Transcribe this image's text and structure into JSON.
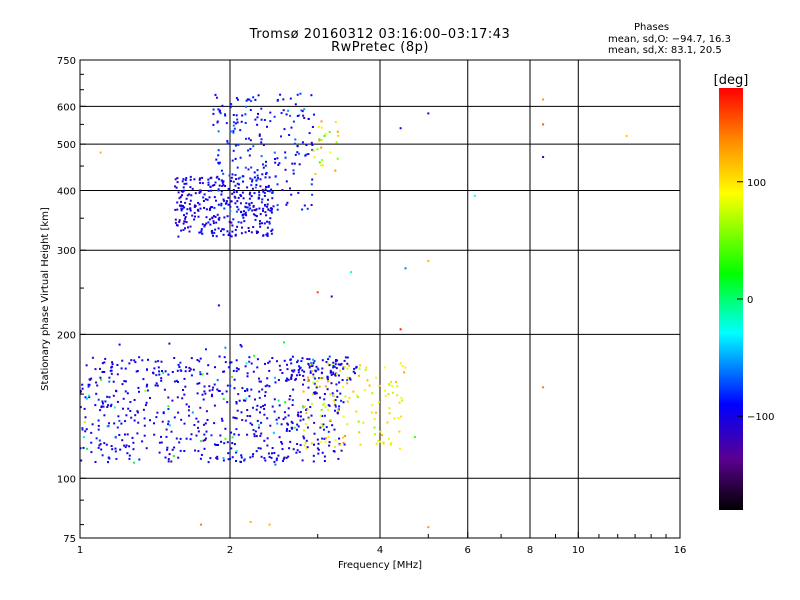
{
  "header": {
    "title_line1": "Tromsø 20160312 03:16:00–03:17:43",
    "title_line2": "RwPretec (8p)",
    "phase_label": "Phases",
    "phase_o": "mean, sd,O: −94.7, 16.3",
    "phase_x": "mean, sd,X:  83.1, 20.5"
  },
  "colorbar": {
    "unit": "[deg]",
    "range": [
      -180,
      180
    ],
    "tick_values": [
      100,
      0,
      -100
    ],
    "tick_labels": [
      "100",
      "0",
      "−100"
    ]
  },
  "chart_data": {
    "type": "scatter",
    "title": "Tromsø 20160312 03:16:00–03:17:43",
    "subtitle": "RwPretec (8p)",
    "xlabel": "Frequency [MHz]",
    "ylabel": "Stationary phase Virtual Height [km]",
    "xscale": "log",
    "yscale": "log",
    "xlim": [
      1,
      16
    ],
    "ylim": [
      75,
      750
    ],
    "x_ticks": [
      1,
      2,
      4,
      6,
      8,
      10,
      16
    ],
    "x_tick_labels": [
      "1",
      "2",
      "4",
      "6",
      "8",
      "10",
      "16"
    ],
    "x_gridlines": [
      2,
      4,
      6,
      8,
      10
    ],
    "y_ticks": [
      75,
      100,
      200,
      300,
      400,
      500,
      600,
      750
    ],
    "y_tick_labels": [
      "75",
      "100",
      "200",
      "300",
      "400",
      "500",
      "600",
      "750"
    ],
    "y_gridlines": [
      100,
      200,
      300,
      400,
      500,
      600
    ],
    "grid": true,
    "color_encoding": "phase [deg]",
    "clusters": [
      {
        "label": "E region O-mode",
        "x_range": [
          1.0,
          3.4
        ],
        "y_range": [
          108,
          180
        ],
        "phase_mean": -100,
        "phase_sd": 10,
        "count": 620
      },
      {
        "label": "E region O-mode upper edge",
        "x_range": [
          2.6,
          3.6
        ],
        "y_range": [
          160,
          180
        ],
        "phase_mean": -95,
        "phase_sd": 12,
        "count": 70
      },
      {
        "label": "E region X-mode",
        "x_range": [
          2.8,
          4.5
        ],
        "y_range": [
          115,
          175
        ],
        "phase_mean": 95,
        "phase_sd": 20,
        "count": 130
      },
      {
        "label": "E region scattered",
        "x_range": [
          1.0,
          3.0
        ],
        "y_range": [
          105,
          200
        ],
        "phase_mean": -40,
        "phase_sd": 60,
        "count": 60
      },
      {
        "label": "F region O-mode",
        "x_range": [
          1.55,
          2.45
        ],
        "y_range": [
          320,
          430
        ],
        "phase_mean": -100,
        "phase_sd": 10,
        "count": 320
      },
      {
        "label": "F region O-mode upper",
        "x_range": [
          1.85,
          2.95
        ],
        "y_range": [
          360,
          640
        ],
        "phase_mean": -90,
        "phase_sd": 15,
        "count": 220
      },
      {
        "label": "F region X-mode",
        "x_range": [
          2.9,
          3.3
        ],
        "y_range": [
          430,
          560
        ],
        "phase_mean": 90,
        "phase_sd": 25,
        "count": 25
      }
    ],
    "isolated_points": [
      {
        "x": 1.1,
        "y": 480,
        "phase": 120
      },
      {
        "x": 1.9,
        "y": 230,
        "phase": -100
      },
      {
        "x": 4.4,
        "y": 540,
        "phase": -110
      },
      {
        "x": 5.0,
        "y": 580,
        "phase": -110
      },
      {
        "x": 6.2,
        "y": 390,
        "phase": -30
      },
      {
        "x": 8.5,
        "y": 620,
        "phase": 130
      },
      {
        "x": 8.5,
        "y": 550,
        "phase": 150
      },
      {
        "x": 8.5,
        "y": 470,
        "phase": -110
      },
      {
        "x": 12.5,
        "y": 520,
        "phase": 110
      },
      {
        "x": 3.5,
        "y": 270,
        "phase": -20
      },
      {
        "x": 4.5,
        "y": 275,
        "phase": -60
      },
      {
        "x": 5.0,
        "y": 285,
        "phase": 120
      },
      {
        "x": 4.4,
        "y": 205,
        "phase": 170
      },
      {
        "x": 3.0,
        "y": 245,
        "phase": 160
      },
      {
        "x": 3.2,
        "y": 240,
        "phase": -100
      },
      {
        "x": 1.75,
        "y": 80,
        "phase": 140
      },
      {
        "x": 2.2,
        "y": 81,
        "phase": 120
      },
      {
        "x": 2.4,
        "y": 80,
        "phase": 120
      },
      {
        "x": 5.0,
        "y": 79,
        "phase": 130
      },
      {
        "x": 4.7,
        "y": 122,
        "phase": 40
      },
      {
        "x": 8.5,
        "y": 155,
        "phase": 140
      },
      {
        "x": 2.1,
        "y": 190,
        "phase": -100
      },
      {
        "x": 1.0,
        "y": 600,
        "phase": 100
      }
    ]
  }
}
